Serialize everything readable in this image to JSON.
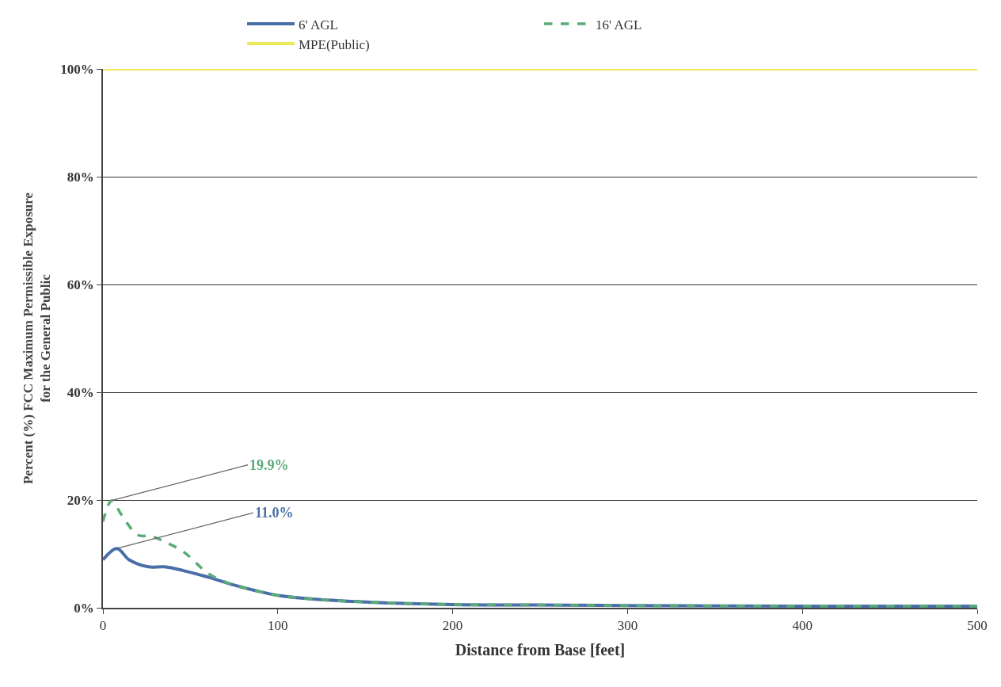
{
  "chart_data": {
    "type": "line",
    "xlabel": "Distance from Base [feet]",
    "ylabel": "Percent (%) FCC Maximum Permissible Exposure\nfor the General Public",
    "series": [
      {
        "name": "6' AGL",
        "color": "#4a6fa8",
        "line_style": "solid",
        "x": [
          0,
          8,
          15,
          26,
          35,
          46,
          61,
          75,
          87,
          102,
          125,
          155,
          200,
          250,
          300,
          400,
          500
        ],
        "values": [
          8.9,
          11.0,
          8.9,
          7.6,
          7.6,
          6.9,
          5.6,
          4.2,
          3.2,
          2.2,
          1.5,
          1.0,
          0.6,
          0.5,
          0.4,
          0.3,
          0.3
        ]
      },
      {
        "name": "16' AGL",
        "color": "#5aab78",
        "line_style": "dashed",
        "x": [
          0,
          5,
          10.5,
          20,
          27.5,
          35,
          46,
          60,
          69,
          75,
          87,
          102,
          125,
          155,
          200,
          250,
          300,
          400,
          500
        ],
        "values": [
          16.0,
          19.9,
          17.3,
          13.5,
          13.3,
          12.3,
          10.4,
          6.4,
          4.9,
          4.2,
          3.2,
          2.2,
          1.5,
          1.0,
          0.6,
          0.5,
          0.4,
          0.3,
          0.3
        ]
      },
      {
        "name": "MPE(Public)",
        "color": "#eee85a",
        "line_style": "solid",
        "x": [
          0,
          500
        ],
        "values": [
          100,
          100
        ]
      }
    ],
    "annotations": [
      {
        "text": "19.9%",
        "x": 5,
        "y": 19.9
      },
      {
        "text": "11.0%",
        "x": 8,
        "y": 11.0
      }
    ],
    "xlim": [
      0,
      500
    ],
    "xticks": [
      0,
      100,
      200,
      300,
      400,
      500
    ],
    "ylim": [
      0,
      100
    ],
    "yticks": [
      {
        "value": 0,
        "label": "0%"
      },
      {
        "value": 20,
        "label": "20%"
      },
      {
        "value": 40,
        "label": "40%"
      },
      {
        "value": 60,
        "label": "60%"
      },
      {
        "value": 80,
        "label": "80%"
      },
      {
        "value": 100,
        "label": "100%"
      }
    ],
    "grid": "y",
    "legend": "top",
    "marker": "none"
  }
}
